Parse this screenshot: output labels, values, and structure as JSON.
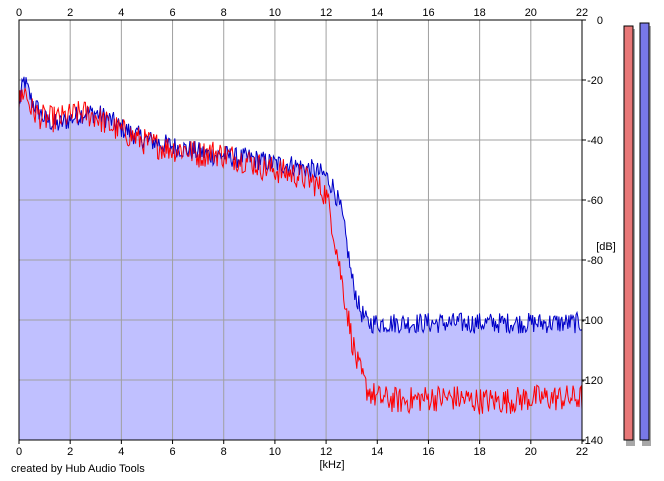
{
  "footer": {
    "credit": "created by Hub Audio Tools"
  },
  "chart_data": {
    "type": "area",
    "title": "",
    "xlabel": "[kHz]",
    "ylabel": "[dB]",
    "xlim": [
      0,
      22
    ],
    "ylim": [
      -140,
      0
    ],
    "x_ticks": [
      0,
      2,
      4,
      6,
      8,
      10,
      12,
      14,
      16,
      18,
      20,
      22
    ],
    "y_ticks": [
      0,
      -20,
      -40,
      -60,
      -80,
      -100,
      -120,
      -140
    ],
    "grid": true,
    "legend": "none",
    "series": [
      {
        "color": "#0000c8",
        "fill": "#c0c0ff",
        "x": [
          0,
          0.2,
          0.5,
          1.0,
          1.5,
          2.0,
          2.5,
          3.0,
          3.5,
          4.0,
          4.5,
          5.0,
          5.5,
          6.0,
          6.5,
          7.0,
          7.5,
          8.0,
          8.5,
          9.0,
          9.5,
          10.0,
          10.5,
          11.0,
          11.5,
          12.0,
          12.3,
          12.6,
          12.8,
          13.0,
          13.3,
          13.6,
          14.0,
          15.0,
          16.0,
          17.0,
          18.0,
          19.0,
          20.0,
          21.0,
          22.0
        ],
        "values": [
          -28,
          -20,
          -27,
          -33,
          -35,
          -33,
          -31,
          -31,
          -33,
          -36,
          -38,
          -40,
          -41,
          -42,
          -43,
          -44,
          -45,
          -45,
          -46,
          -46,
          -47,
          -48,
          -48,
          -49,
          -50,
          -52,
          -56,
          -64,
          -74,
          -86,
          -96,
          -101,
          -101,
          -101,
          -101,
          -101,
          -101,
          -101,
          -101,
          -101,
          -101
        ]
      },
      {
        "color": "#ff0000",
        "x": [
          0,
          0.2,
          0.5,
          1.0,
          1.5,
          2.0,
          2.5,
          3.0,
          3.5,
          4.0,
          4.5,
          5.0,
          5.5,
          6.0,
          6.5,
          7.0,
          7.5,
          8.0,
          8.5,
          9.0,
          9.5,
          10.0,
          10.5,
          11.0,
          11.5,
          12.0,
          12.2,
          12.4,
          12.6,
          12.8,
          13.0,
          13.2,
          13.4,
          13.6,
          14.0,
          15.0,
          16.0,
          17.0,
          18.0,
          19.0,
          20.0,
          21.0,
          22.0
        ],
        "values": [
          -28,
          -23,
          -30,
          -33,
          -33,
          -32,
          -31,
          -32,
          -35,
          -37,
          -39,
          -41,
          -42,
          -43,
          -43,
          -45,
          -44,
          -45,
          -46,
          -47,
          -49,
          -50,
          -51,
          -52,
          -54,
          -58,
          -66,
          -76,
          -86,
          -96,
          -106,
          -114,
          -119,
          -123,
          -126,
          -127,
          -126,
          -126,
          -127,
          -127,
          -126,
          -126,
          -126
        ]
      }
    ],
    "side_meters": [
      {
        "color": "#e87878",
        "value": -2
      },
      {
        "color": "#7878e8",
        "value": -1
      }
    ]
  }
}
